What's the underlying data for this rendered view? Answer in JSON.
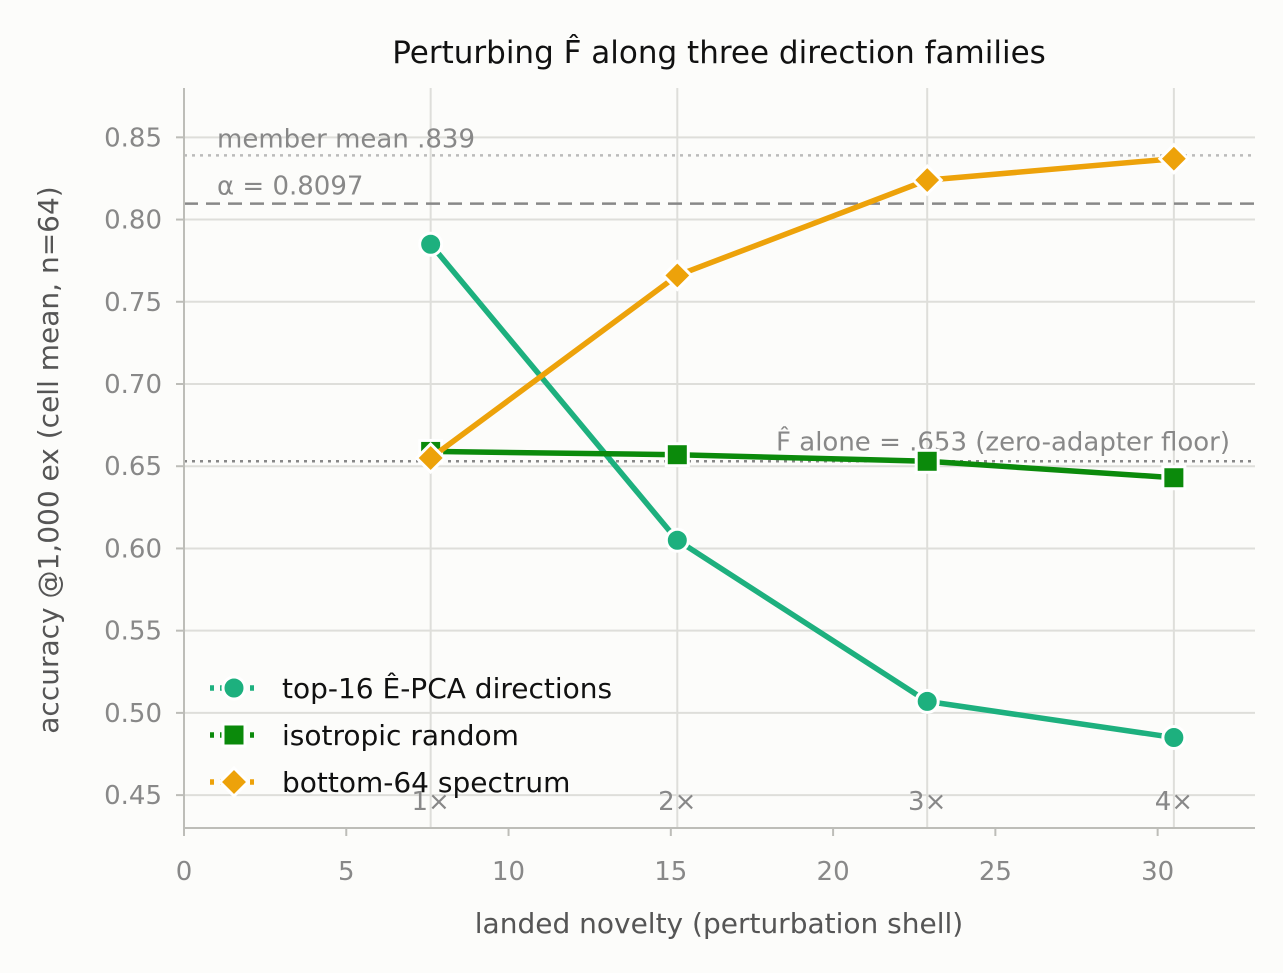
{
  "chart_data": {
    "type": "line",
    "title": "Perturbing F̂ along three direction families",
    "xlabel": "landed novelty (perturbation shell)",
    "ylabel": "accuracy @1,000 ex (cell mean, n=64)",
    "xlim": [
      0,
      33
    ],
    "ylim": [
      0.43,
      0.88
    ],
    "xticks": [
      0,
      5,
      10,
      15,
      20,
      25,
      30
    ],
    "xtick_labels": [
      "0",
      "5",
      "10",
      "15",
      "20",
      "25",
      "30"
    ],
    "yticks": [
      0.45,
      0.5,
      0.55,
      0.6,
      0.65,
      0.7,
      0.75,
      0.8,
      0.85
    ],
    "ytick_labels": [
      "0.45",
      "0.50",
      "0.55",
      "0.60",
      "0.65",
      "0.70",
      "0.75",
      "0.80",
      "0.85"
    ],
    "grid": true,
    "legend_position": "lower-left",
    "shell_markers": [
      {
        "x": 7.6,
        "label": "1×"
      },
      {
        "x": 15.2,
        "label": "2×"
      },
      {
        "x": 22.9,
        "label": "3×"
      },
      {
        "x": 30.5,
        "label": "4×"
      }
    ],
    "reference_lines": [
      {
        "y": 0.839,
        "label": "member mean .839",
        "style": "dotted",
        "color": "#bbbbbb"
      },
      {
        "y": 0.8097,
        "label": "α = 0.8097",
        "style": "dashed",
        "color": "#888888"
      },
      {
        "y": 0.653,
        "label": "F̂ alone = .653 (zero-adapter floor)",
        "style": "dotted",
        "color": "#888888"
      }
    ],
    "series": [
      {
        "name": "top-16 Ê-PCA directions",
        "color": "#1db07e",
        "marker": "circle",
        "x": [
          7.6,
          15.2,
          22.9,
          30.5
        ],
        "y": [
          0.785,
          0.605,
          0.507,
          0.485
        ]
      },
      {
        "name": "isotropic random",
        "color": "#0b8a0b",
        "marker": "square",
        "x": [
          7.6,
          15.2,
          22.9,
          30.5
        ],
        "y": [
          0.659,
          0.657,
          0.653,
          0.643
        ]
      },
      {
        "name": "bottom-64 spectrum",
        "color": "#eda20a",
        "marker": "diamond",
        "x": [
          7.6,
          15.2,
          22.9,
          30.5
        ],
        "y": [
          0.655,
          0.766,
          0.824,
          0.837
        ]
      }
    ]
  }
}
